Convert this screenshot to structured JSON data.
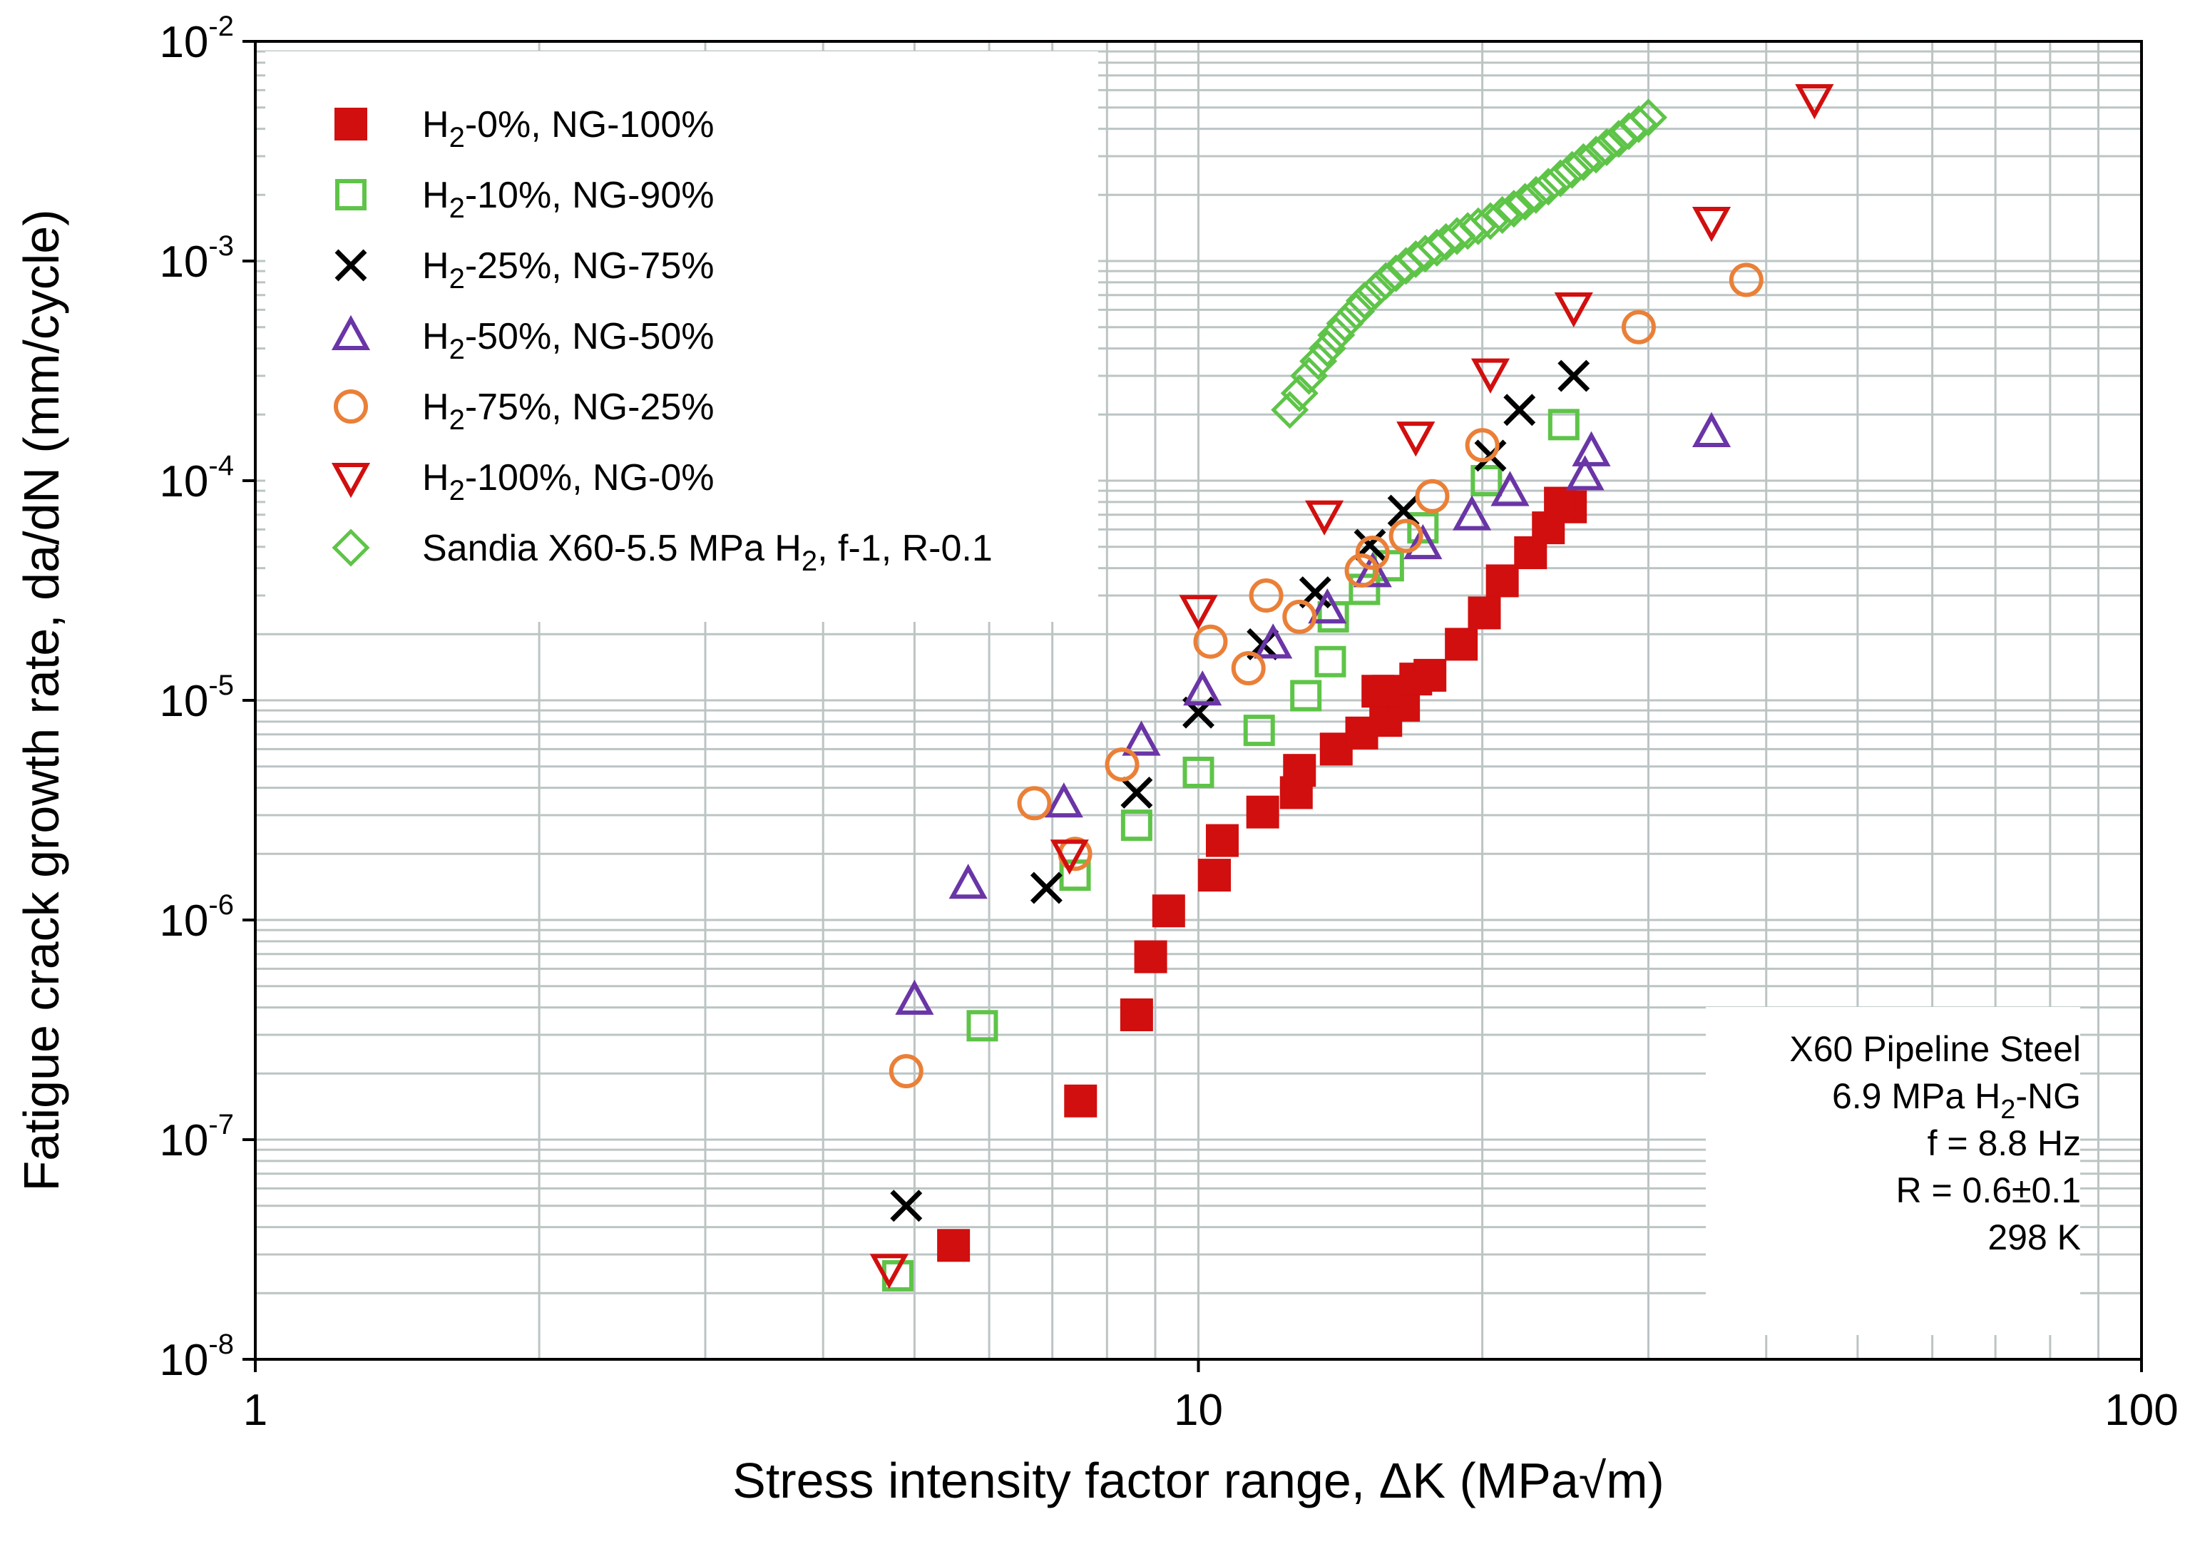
{
  "chart_data": {
    "type": "scatter",
    "xscale": "log",
    "yscale": "log",
    "xlim": [
      1,
      100
    ],
    "ylim": [
      1e-08,
      0.01
    ],
    "grid": true,
    "legend_position": "top-left",
    "xlabel": "Stress intensity factor range, ΔK (MPa√m)",
    "ylabel": "Fatigue crack growth rate, da/dN (mm/cycle)",
    "x_ticks": [
      {
        "value": 1,
        "label": "1"
      },
      {
        "value": 10,
        "label": "10"
      },
      {
        "value": 100,
        "label": "100"
      }
    ],
    "y_ticks": [
      {
        "value": 1e-08,
        "base": "10",
        "exp": "-8"
      },
      {
        "value": 1e-07,
        "base": "10",
        "exp": "-7"
      },
      {
        "value": 1e-06,
        "base": "10",
        "exp": "-6"
      },
      {
        "value": 1e-05,
        "base": "10",
        "exp": "-5"
      },
      {
        "value": 0.0001,
        "base": "10",
        "exp": "-4"
      },
      {
        "value": 0.001,
        "base": "10",
        "exp": "-3"
      },
      {
        "value": 0.01,
        "base": "10",
        "exp": "-2"
      }
    ],
    "annotation": {
      "lines": [
        {
          "pre": "X60 Pipeline Steel",
          "sub": "",
          "post": ""
        },
        {
          "pre": "6.9 MPa H",
          "sub": "2",
          "post": "-NG"
        },
        {
          "pre": "f = 8.8 Hz",
          "sub": "",
          "post": ""
        },
        {
          "pre": "R = 0.6±0.1",
          "sub": "",
          "post": ""
        },
        {
          "pre": "298 K",
          "sub": "",
          "post": ""
        }
      ]
    },
    "series": [
      {
        "name": "H2-0%, NG-100%",
        "label_parts": {
          "pre": "H",
          "sub": "2",
          "post": "-0%, NG-100%"
        },
        "marker": "square-filled",
        "color": "#d10f0f",
        "points": [
          [
            5.5,
            3.3e-08
          ],
          [
            7.5,
            1.5e-07
          ],
          [
            8.6,
            3.7e-07
          ],
          [
            8.9,
            6.8e-07
          ],
          [
            9.3,
            1.1e-06
          ],
          [
            10.4,
            1.6e-06
          ],
          [
            10.6,
            2.3e-06
          ],
          [
            11.7,
            3.1e-06
          ],
          [
            12.7,
            3.8e-06
          ],
          [
            12.8,
            4.8e-06
          ],
          [
            14.0,
            6e-06
          ],
          [
            14.9,
            7.1e-06
          ],
          [
            15.8,
            8.1e-06
          ],
          [
            16.5,
            9.5e-06
          ],
          [
            15.5,
            1.1e-05
          ],
          [
            15.9,
            1.1e-05
          ],
          [
            17.0,
            1.25e-05
          ],
          [
            17.6,
            1.3e-05
          ],
          [
            19.0,
            1.8e-05
          ],
          [
            20.1,
            2.5e-05
          ],
          [
            21.0,
            3.5e-05
          ],
          [
            22.5,
            4.7e-05
          ],
          [
            23.5,
            6.1e-05
          ],
          [
            24.8,
            7.6e-05
          ],
          [
            24.2,
            7.9e-05
          ]
        ]
      },
      {
        "name": "H2-10%, NG-90%",
        "label_parts": {
          "pre": "H",
          "sub": "2",
          "post": "-10%, NG-90%"
        },
        "marker": "square-open",
        "color": "#5ec448",
        "points": [
          [
            4.8,
            2.4e-08
          ],
          [
            5.9,
            3.3e-07
          ],
          [
            7.4,
            1.6e-06
          ],
          [
            8.6,
            2.7e-06
          ],
          [
            10.0,
            4.7e-06
          ],
          [
            11.6,
            7.3e-06
          ],
          [
            13.0,
            1.05e-05
          ],
          [
            13.8,
            1.5e-05
          ],
          [
            13.9,
            2.4e-05
          ],
          [
            15.0,
            3.2e-05
          ],
          [
            15.9,
            4.1e-05
          ],
          [
            17.3,
            6.1e-05
          ],
          [
            20.2,
            0.0001
          ],
          [
            24.4,
            0.00018
          ]
        ]
      },
      {
        "name": "H2-25%, NG-75%",
        "label_parts": {
          "pre": "H",
          "sub": "2",
          "post": "-25%, NG-75%"
        },
        "marker": "x",
        "color": "#000000",
        "points": [
          [
            4.9,
            5e-08
          ],
          [
            6.9,
            1.4e-06
          ],
          [
            8.6,
            3.8e-06
          ],
          [
            10.0,
            8.8e-06
          ],
          [
            11.7,
            1.8e-05
          ],
          [
            13.3,
            3.1e-05
          ],
          [
            15.2,
            5.1e-05
          ],
          [
            16.5,
            7.3e-05
          ],
          [
            20.4,
            0.00013
          ],
          [
            21.9,
            0.00021
          ],
          [
            25.0,
            0.0003
          ]
        ]
      },
      {
        "name": "H2-50%, NG-50%",
        "label_parts": {
          "pre": "H",
          "sub": "2",
          "post": "-50%, NG-50%"
        },
        "marker": "triangle-up-open",
        "color": "#6a35a6",
        "points": [
          [
            5.0,
            4.3e-07
          ],
          [
            5.7,
            1.45e-06
          ],
          [
            7.2,
            3.4e-06
          ],
          [
            8.7,
            6.5e-06
          ],
          [
            10.1,
            1.1e-05
          ],
          [
            12.0,
            1.8e-05
          ],
          [
            13.7,
            2.6e-05
          ],
          [
            15.3,
            3.8e-05
          ],
          [
            17.3,
            5.1e-05
          ],
          [
            19.5,
            6.9e-05
          ],
          [
            21.4,
            8.9e-05
          ],
          [
            25.7,
            0.000105
          ],
          [
            26.1,
            0.000135
          ],
          [
            35.0,
            0.000165
          ]
        ]
      },
      {
        "name": "H2-75%, NG-25%",
        "label_parts": {
          "pre": "H",
          "sub": "2",
          "post": "-75%, NG-25%"
        },
        "marker": "circle-open",
        "color": "#ea8038",
        "points": [
          [
            4.9,
            2.05e-07
          ],
          [
            6.7,
            3.4e-06
          ],
          [
            7.4,
            2e-06
          ],
          [
            8.3,
            5.1e-06
          ],
          [
            10.3,
            1.85e-05
          ],
          [
            11.3,
            1.4e-05
          ],
          [
            11.8,
            3e-05
          ],
          [
            12.8,
            2.4e-05
          ],
          [
            14.9,
            3.9e-05
          ],
          [
            15.3,
            4.7e-05
          ],
          [
            16.6,
            5.6e-05
          ],
          [
            17.7,
            8.5e-05
          ],
          [
            20.0,
            0.000145
          ],
          [
            29.3,
            0.0005
          ],
          [
            38.1,
            0.00082
          ]
        ]
      },
      {
        "name": "H2-100%, NG-0%",
        "label_parts": {
          "pre": "H",
          "sub": "2",
          "post": "-100%, NG-0%"
        },
        "marker": "triangle-down-open",
        "color": "#d10f0f",
        "points": [
          [
            4.7,
            2.6e-08
          ],
          [
            7.3,
            2e-06
          ],
          [
            10.0,
            2.6e-05
          ],
          [
            13.6,
            7e-05
          ],
          [
            17.0,
            0.00016
          ],
          [
            20.4,
            0.00031
          ],
          [
            25.0,
            0.00062
          ],
          [
            35.0,
            0.00152
          ],
          [
            45.0,
            0.0055
          ]
        ]
      },
      {
        "name": "Sandia X60-5.5 MPa H2, f-1, R-0.1",
        "label_parts": {
          "pre": "Sandia X60-5.5 MPa H",
          "sub": "2",
          "post": ", f-1, R-0.1"
        },
        "marker": "diamond-open",
        "color": "#5ec448",
        "points": [
          [
            12.5,
            0.00021
          ],
          [
            12.8,
            0.00025
          ],
          [
            13.1,
            0.0003
          ],
          [
            13.4,
            0.00035
          ],
          [
            13.7,
            0.0004
          ],
          [
            14.0,
            0.00046
          ],
          [
            14.3,
            0.00052
          ],
          [
            14.7,
            0.00059
          ],
          [
            15.0,
            0.00066
          ],
          [
            15.4,
            0.00073
          ],
          [
            15.8,
            0.00081
          ],
          [
            16.2,
            0.00088
          ],
          [
            16.6,
            0.00095
          ],
          [
            17.0,
            0.00102
          ],
          [
            17.4,
            0.00108
          ],
          [
            17.9,
            0.00115
          ],
          [
            18.3,
            0.00122
          ],
          [
            18.8,
            0.0013
          ],
          [
            19.3,
            0.00137
          ],
          [
            19.8,
            0.00144
          ],
          [
            20.4,
            0.00152
          ],
          [
            21.0,
            0.00162
          ],
          [
            21.6,
            0.00173
          ],
          [
            22.2,
            0.00186
          ],
          [
            22.8,
            0.002
          ],
          [
            23.5,
            0.00218
          ],
          [
            24.2,
            0.00238
          ],
          [
            24.9,
            0.0026
          ],
          [
            25.6,
            0.00282
          ],
          [
            26.4,
            0.00305
          ],
          [
            27.1,
            0.0033
          ],
          [
            27.9,
            0.0036
          ],
          [
            28.6,
            0.0039
          ],
          [
            29.3,
            0.0042
          ],
          [
            30.0,
            0.0045
          ]
        ]
      }
    ]
  }
}
